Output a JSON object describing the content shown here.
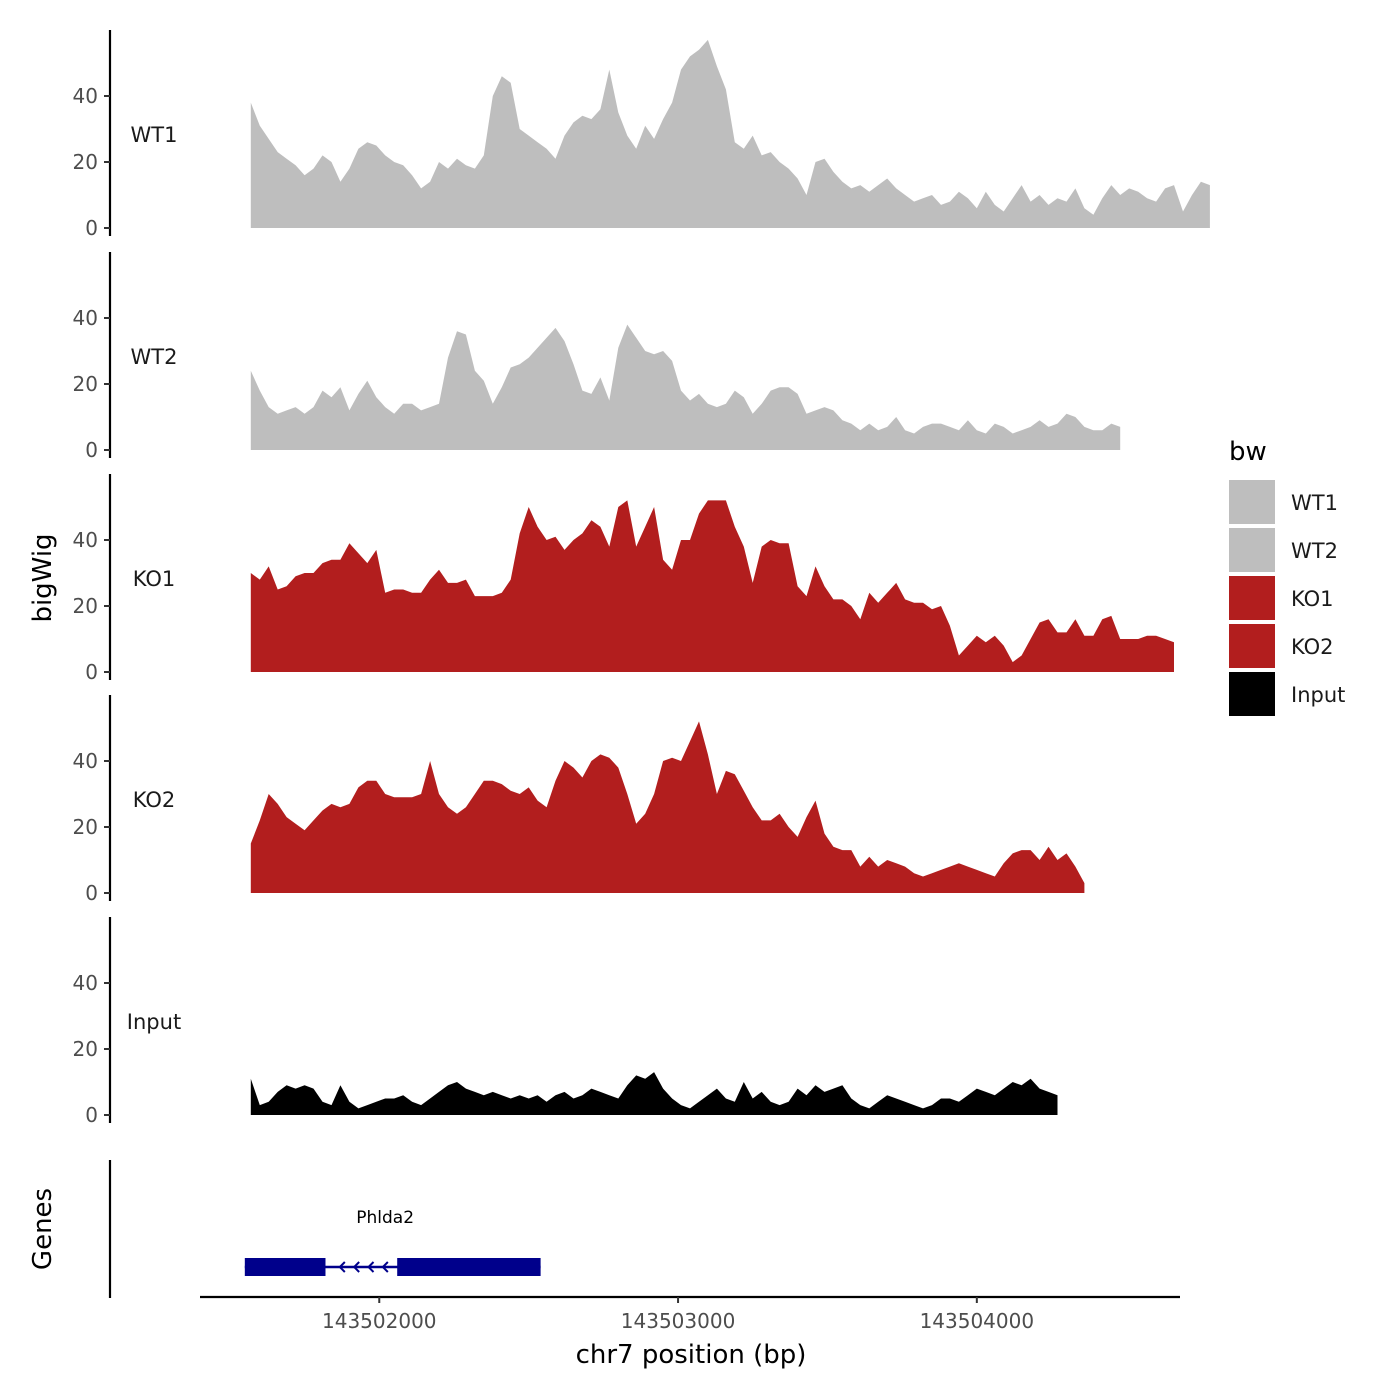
{
  "chart_data": {
    "type": "area",
    "xlabel": "chr7 position (bp)",
    "ylabel": "bigWig",
    "genes_label": "Genes",
    "xlim": [
      143501400,
      143504680
    ],
    "x_ticks": [
      143502000,
      143503000,
      143504000
    ],
    "x_tick_labels": [
      "143502000",
      "143503000",
      "143504000"
    ],
    "ylim": [
      0,
      60
    ],
    "y_ticks": [
      0,
      20,
      40
    ],
    "y_tick_labels": [
      "0",
      "20",
      "40"
    ],
    "legend": {
      "title": "bw",
      "position": "right",
      "entries": [
        {
          "label": "WT1",
          "color": "#bebebe"
        },
        {
          "label": "WT2",
          "color": "#bebebe"
        },
        {
          "label": "KO1",
          "color": "#b21e1e"
        },
        {
          "label": "KO2",
          "color": "#b21e1e"
        },
        {
          "label": "Input",
          "color": "#000000"
        }
      ]
    },
    "x_start": 143501570,
    "x_step": 30,
    "series": [
      {
        "name": "WT1",
        "color": "#bebebe",
        "values": [
          38,
          31,
          27,
          23,
          21,
          19,
          16,
          18,
          22,
          20,
          14,
          18,
          24,
          26,
          25,
          22,
          20,
          19,
          16,
          12,
          14,
          20,
          18,
          21,
          19,
          18,
          22,
          40,
          46,
          44,
          30,
          28,
          26,
          24,
          21,
          28,
          32,
          34,
          33,
          36,
          48,
          35,
          28,
          24,
          31,
          27,
          33,
          38,
          48,
          52,
          54,
          57,
          49,
          42,
          26,
          24,
          28,
          22,
          23,
          20,
          18,
          15,
          10,
          20,
          21,
          17,
          14,
          12,
          13,
          11,
          13,
          15,
          12,
          10,
          8,
          9,
          10,
          7,
          8,
          11,
          9,
          6,
          11,
          7,
          5,
          9,
          13,
          8,
          10,
          7,
          9,
          8,
          12,
          6,
          4,
          9,
          13,
          10,
          12,
          11,
          9,
          8,
          12,
          13,
          5,
          10,
          14,
          13
        ]
      },
      {
        "name": "WT2",
        "color": "#bebebe",
        "values": [
          24,
          18,
          13,
          11,
          12,
          13,
          11,
          13,
          18,
          16,
          19,
          12,
          17,
          21,
          16,
          13,
          11,
          14,
          14,
          12,
          13,
          14,
          28,
          36,
          35,
          24,
          21,
          14,
          19,
          25,
          26,
          28,
          31,
          34,
          37,
          33,
          26,
          18,
          17,
          22,
          15,
          31,
          38,
          34,
          30,
          29,
          30,
          27,
          18,
          15,
          17,
          14,
          13,
          14,
          18,
          16,
          11,
          14,
          18,
          19,
          19,
          17,
          11,
          12,
          13,
          12,
          9,
          8,
          6,
          8,
          6,
          7,
          10,
          6,
          5,
          7,
          8,
          8,
          7,
          6,
          9,
          6,
          5,
          8,
          7,
          5,
          6,
          7,
          9,
          7,
          8,
          11,
          10,
          7,
          6,
          6,
          8,
          7
        ]
      },
      {
        "name": "KO1",
        "color": "#b21e1e",
        "values": [
          30,
          28,
          32,
          25,
          26,
          29,
          30,
          30,
          33,
          34,
          34,
          39,
          36,
          33,
          37,
          24,
          25,
          25,
          24,
          24,
          28,
          31,
          27,
          27,
          28,
          23,
          23,
          23,
          24,
          28,
          42,
          50,
          44,
          40,
          41,
          37,
          40,
          42,
          46,
          44,
          38,
          50,
          52,
          38,
          44,
          50,
          34,
          31,
          40,
          40,
          48,
          52,
          52,
          52,
          44,
          38,
          27,
          38,
          40,
          39,
          39,
          26,
          23,
          32,
          26,
          22,
          22,
          20,
          16,
          24,
          21,
          24,
          27,
          22,
          21,
          21,
          19,
          20,
          14,
          5,
          8,
          11,
          9,
          11,
          8,
          3,
          5,
          10,
          15,
          16,
          12,
          12,
          16,
          11,
          11,
          16,
          17,
          10,
          10,
          10,
          11,
          11,
          10,
          9
        ]
      },
      {
        "name": "KO2",
        "color": "#b21e1e",
        "values": [
          15,
          22,
          30,
          27,
          23,
          21,
          19,
          22,
          25,
          27,
          26,
          27,
          32,
          34,
          34,
          30,
          29,
          29,
          29,
          30,
          40,
          30,
          26,
          24,
          26,
          30,
          34,
          34,
          33,
          31,
          30,
          32,
          28,
          26,
          34,
          40,
          38,
          35,
          40,
          42,
          41,
          38,
          30,
          21,
          24,
          30,
          40,
          41,
          40,
          46,
          52,
          42,
          30,
          37,
          36,
          31,
          26,
          22,
          22,
          24,
          20,
          17,
          23,
          28,
          18,
          14,
          13,
          13,
          8,
          11,
          8,
          10,
          9,
          8,
          6,
          5,
          6,
          7,
          8,
          9,
          8,
          7,
          6,
          5,
          9,
          12,
          13,
          13,
          10,
          14,
          10,
          12,
          8,
          3
        ]
      },
      {
        "name": "Input",
        "color": "#000000",
        "values": [
          11,
          3,
          4,
          7,
          9,
          8,
          9,
          8,
          4,
          3,
          9,
          4,
          2,
          3,
          4,
          5,
          5,
          6,
          4,
          3,
          5,
          7,
          9,
          10,
          8,
          7,
          6,
          7,
          6,
          5,
          6,
          5,
          6,
          4,
          6,
          7,
          5,
          6,
          8,
          7,
          6,
          5,
          9,
          12,
          11,
          13,
          8,
          5,
          3,
          2,
          4,
          6,
          8,
          5,
          4,
          10,
          5,
          7,
          4,
          3,
          4,
          8,
          6,
          9,
          7,
          8,
          9,
          5,
          3,
          2,
          4,
          6,
          5,
          4,
          3,
          2,
          3,
          5,
          5,
          4,
          6,
          8,
          7,
          6,
          8,
          10,
          9,
          11,
          8,
          7,
          6
        ]
      }
    ],
    "genes": [
      {
        "name": "Phlda2",
        "start": 143501550,
        "end": 143502540,
        "strand": "-",
        "exons": [
          [
            143501550,
            143501820
          ],
          [
            143502060,
            143502540
          ]
        ]
      }
    ]
  }
}
